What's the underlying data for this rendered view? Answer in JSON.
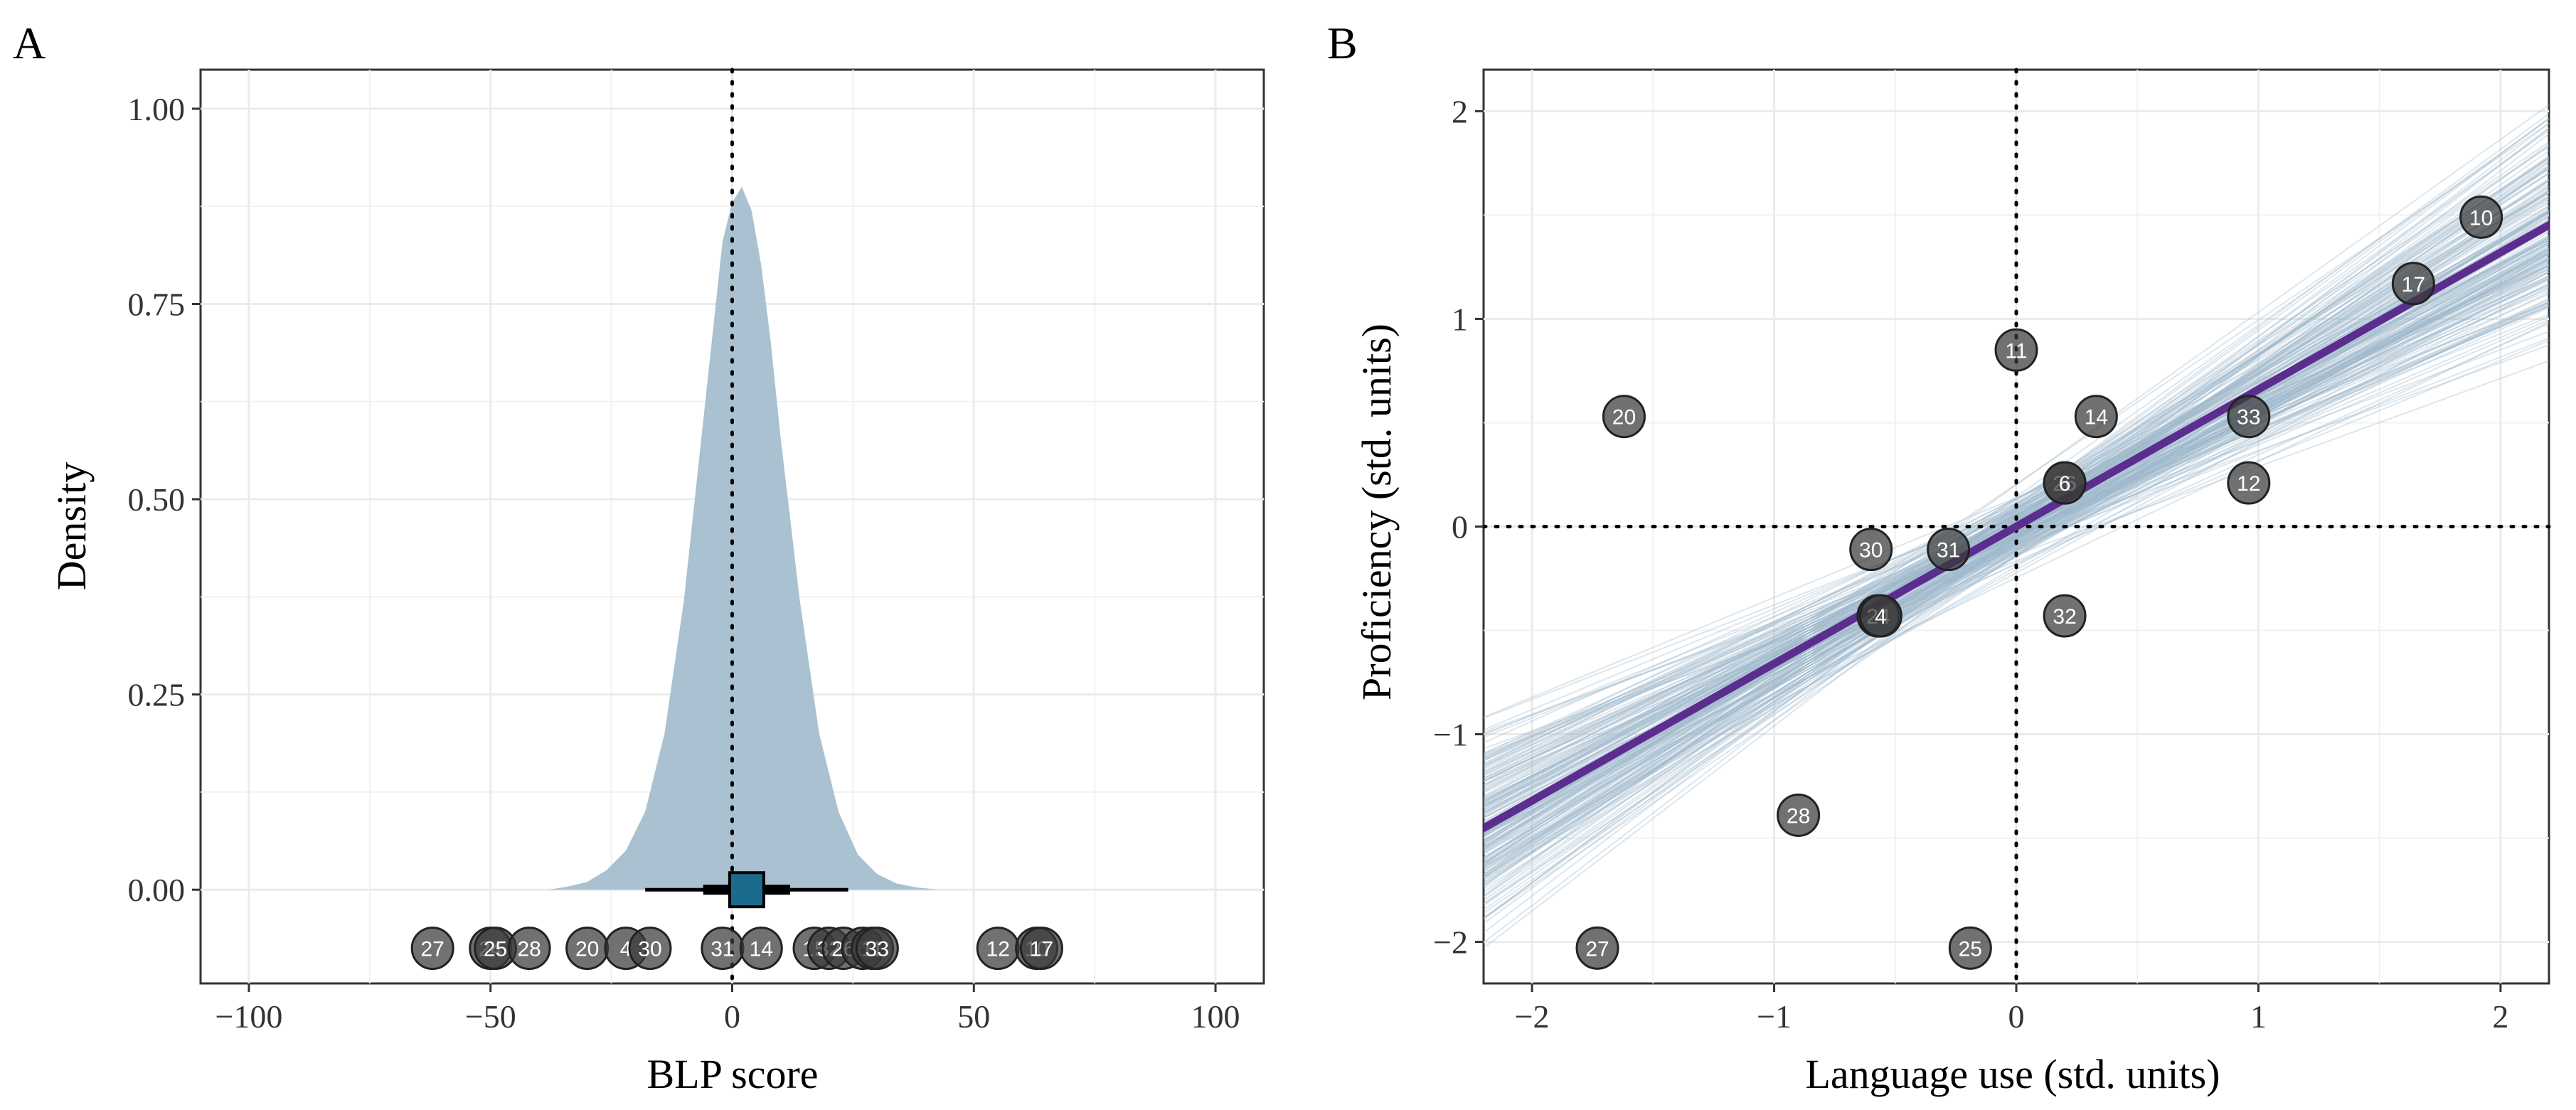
{
  "chart_data": [
    {
      "panel": "A",
      "type": "density",
      "xlabel": "BLP score",
      "ylabel": "Density",
      "xlim": [
        -110,
        110
      ],
      "ylim": [
        -0.12,
        1.05
      ],
      "xticks": [
        -100,
        -50,
        0,
        50,
        100
      ],
      "xtick_labels": [
        "−100",
        "−50",
        "0",
        "50",
        "100"
      ],
      "yticks": [
        0,
        0.25,
        0.5,
        0.75,
        1.0
      ],
      "ytick_labels": [
        "0.00",
        "0.25",
        "0.50",
        "0.75",
        "1.00"
      ],
      "grid": true,
      "reference_line": {
        "x": 0,
        "style": "dotted"
      },
      "density": {
        "color": "#a9c1d1",
        "x": [
          -38,
          -34,
          -30,
          -26,
          -22,
          -18,
          -14,
          -10,
          -6,
          -2,
          0,
          2,
          4,
          6,
          8,
          10,
          14,
          18,
          22,
          26,
          30,
          34,
          38,
          43
        ],
        "y": [
          0,
          0.004,
          0.01,
          0.025,
          0.05,
          0.1,
          0.2,
          0.37,
          0.6,
          0.83,
          0.88,
          0.9,
          0.87,
          0.8,
          0.7,
          0.58,
          0.37,
          0.2,
          0.1,
          0.045,
          0.02,
          0.008,
          0.003,
          0
        ]
      },
      "summary": {
        "estimate": 3,
        "inner_interval": [
          -6,
          12
        ],
        "outer_interval": [
          -18,
          24
        ],
        "color": "#1a6b8c"
      },
      "points": [
        {
          "label": "27",
          "x": -62
        },
        {
          "label": "24",
          "x": -50
        },
        {
          "label": "25",
          "x": -49
        },
        {
          "label": "28",
          "x": -42
        },
        {
          "label": "20",
          "x": -30
        },
        {
          "label": "4",
          "x": -22
        },
        {
          "label": "30",
          "x": -17
        },
        {
          "label": "31",
          "x": -2
        },
        {
          "label": "14",
          "x": 6
        },
        {
          "label": "15",
          "x": 17
        },
        {
          "label": "32",
          "x": 20
        },
        {
          "label": "26",
          "x": 23
        },
        {
          "label": "6",
          "x": 27
        },
        {
          "label": "11",
          "x": 29
        },
        {
          "label": "33",
          "x": 30
        },
        {
          "label": "12",
          "x": 55
        },
        {
          "label": "10",
          "x": 63
        },
        {
          "label": "17",
          "x": 64
        }
      ],
      "points_y": -0.075
    },
    {
      "panel": "B",
      "type": "scatter",
      "xlabel": "Language use (std. units)",
      "ylabel": "Proficiency (std. units)",
      "xlim": [
        -2.2,
        2.2
      ],
      "ylim": [
        -2.2,
        2.2
      ],
      "xticks": [
        -2,
        -1,
        0,
        1,
        2
      ],
      "xtick_labels": [
        "−2",
        "−1",
        "0",
        "1",
        "2"
      ],
      "yticks": [
        -2,
        -1,
        0,
        1,
        2
      ],
      "ytick_labels": [
        "−2",
        "−1",
        "0",
        "1",
        "2"
      ],
      "grid": true,
      "reference_lines": {
        "x": 0,
        "y": 0,
        "style": "dotted"
      },
      "fit": {
        "slope": 0.66,
        "intercept": 0.0,
        "color": "#5b2d8e"
      },
      "posterior_lines_color": "#9fb8cc",
      "points": [
        {
          "label": "10",
          "x": 1.92,
          "y": 1.49
        },
        {
          "label": "17",
          "x": 1.64,
          "y": 1.17
        },
        {
          "label": "11",
          "x": 0.0,
          "y": 0.85
        },
        {
          "label": "20",
          "x": -1.62,
          "y": 0.53
        },
        {
          "label": "14",
          "x": 0.33,
          "y": 0.53
        },
        {
          "label": "33",
          "x": 0.96,
          "y": 0.53
        },
        {
          "label": "12",
          "x": 0.96,
          "y": 0.21
        },
        {
          "label": "26",
          "x": 0.2,
          "y": 0.21
        },
        {
          "label": "6",
          "x": 0.2,
          "y": 0.21
        },
        {
          "label": "30",
          "x": -0.6,
          "y": -0.11
        },
        {
          "label": "31",
          "x": -0.28,
          "y": -0.11
        },
        {
          "label": "24",
          "x": -0.57,
          "y": -0.43
        },
        {
          "label": "4",
          "x": -0.56,
          "y": -0.43
        },
        {
          "label": "32",
          "x": 0.2,
          "y": -0.43
        },
        {
          "label": "28",
          "x": -0.9,
          "y": -1.39
        },
        {
          "label": "27",
          "x": -1.73,
          "y": -2.03
        },
        {
          "label": "25",
          "x": -0.19,
          "y": -2.03
        }
      ]
    }
  ]
}
